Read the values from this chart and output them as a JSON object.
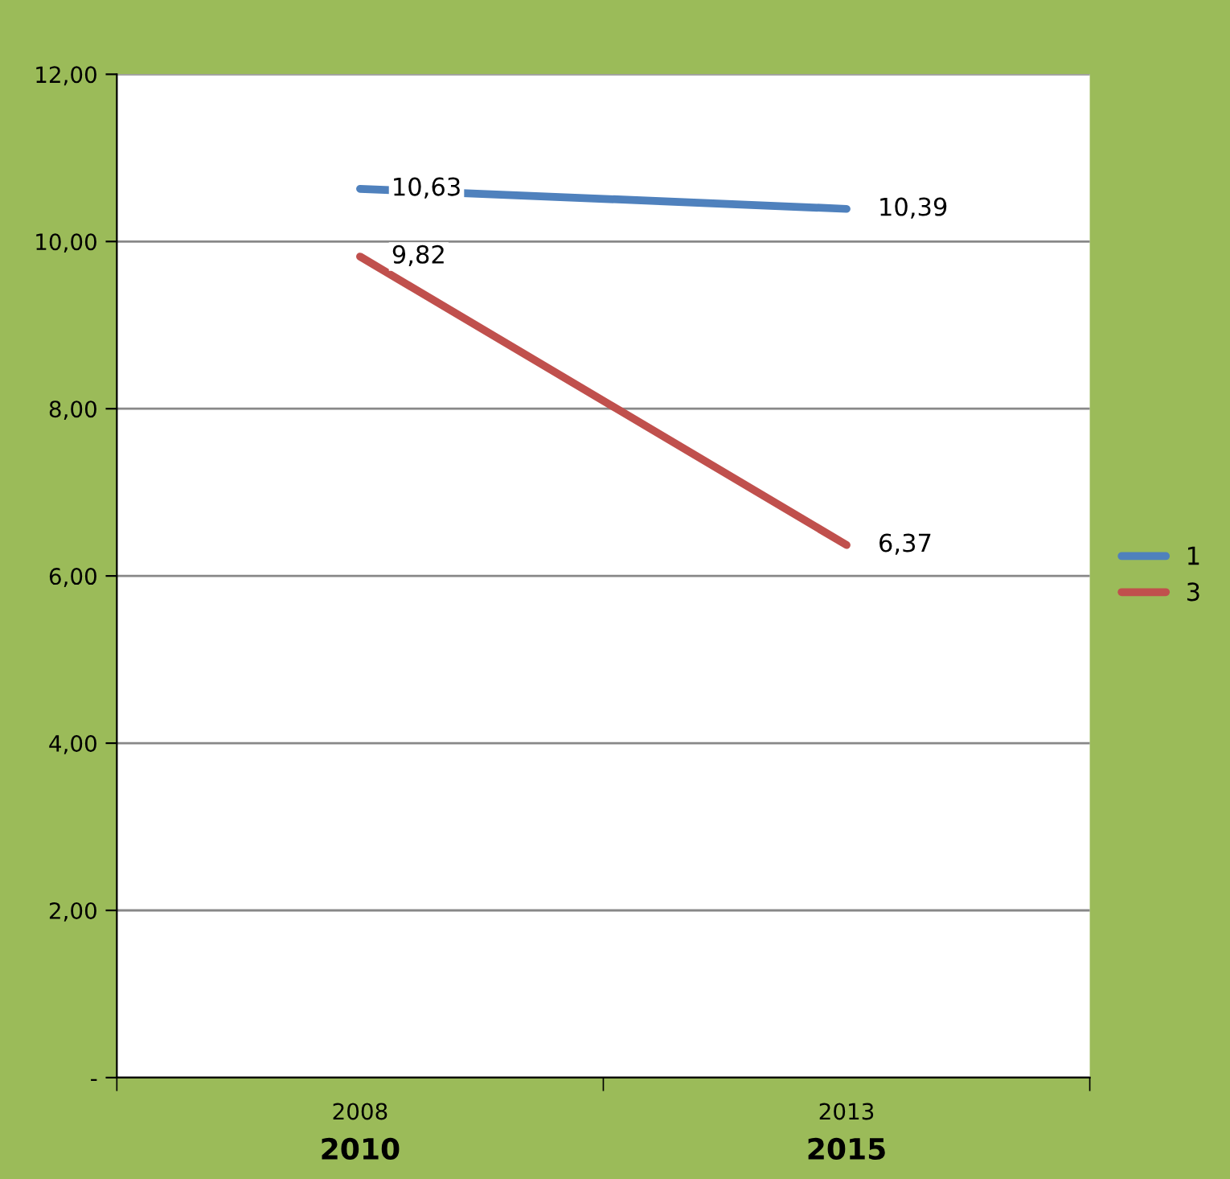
{
  "chart_data": {
    "type": "line",
    "categories": [
      "2008\n2010",
      "2013\n2015"
    ],
    "series": [
      {
        "name": "1",
        "color": "#4f81bd",
        "values": [
          10.63,
          10.39
        ],
        "value_labels": [
          "10,63",
          "10,39"
        ]
      },
      {
        "name": "3",
        "color": "#c0504d",
        "values": [
          9.82,
          6.37
        ],
        "value_labels": [
          "9,82",
          "6,37"
        ]
      }
    ],
    "ylim": [
      0,
      12
    ],
    "yticks": [
      {
        "value": 0,
        "label": "-"
      },
      {
        "value": 2,
        "label": "2,00"
      },
      {
        "value": 4,
        "label": "4,00"
      },
      {
        "value": 6,
        "label": "6,00"
      },
      {
        "value": 8,
        "label": "8,00"
      },
      {
        "value": 10,
        "label": "10,00"
      },
      {
        "value": 12,
        "label": "12,00"
      }
    ],
    "grid": "y",
    "legend": "right",
    "line_style": "solid"
  }
}
